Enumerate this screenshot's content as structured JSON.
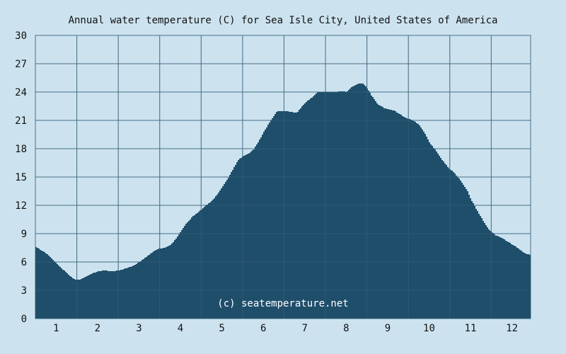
{
  "chart_data": {
    "type": "area",
    "title": "Annual water temperature (C) for Sea Isle City, United States of America",
    "xlabel": "",
    "ylabel": "",
    "x_ticks": [
      "1",
      "2",
      "3",
      "4",
      "5",
      "6",
      "7",
      "8",
      "9",
      "10",
      "11",
      "12"
    ],
    "y_ticks": [
      "0",
      "3",
      "6",
      "9",
      "12",
      "15",
      "18",
      "21",
      "24",
      "27",
      "30"
    ],
    "xlim": [
      0.5,
      12.45
    ],
    "ylim": [
      0,
      30
    ],
    "grid": true,
    "series": [
      {
        "x": [
          0.5,
          0.6,
          0.75,
          0.9,
          1.0,
          1.15,
          1.3,
          1.45,
          1.55,
          1.7,
          1.85,
          2.0,
          2.15,
          2.35,
          2.5,
          2.65,
          2.8,
          3.0,
          3.15,
          3.3,
          3.45,
          3.6,
          3.75,
          3.9,
          4.0,
          4.15,
          4.3,
          4.45,
          4.6,
          4.75,
          4.9,
          5.0,
          5.15,
          5.3,
          5.4,
          5.5,
          5.6,
          5.75,
          5.9,
          6.0,
          6.15,
          6.3,
          6.4,
          6.5,
          6.65,
          6.8,
          6.9,
          7.0,
          7.15,
          7.3,
          7.5,
          7.7,
          7.9,
          8.0,
          8.1,
          8.2,
          8.3,
          8.4,
          8.5,
          8.6,
          8.75,
          8.9,
          9.0,
          9.15,
          9.3,
          9.45,
          9.6,
          9.75,
          9.9,
          10.0,
          10.15,
          10.3,
          10.45,
          10.6,
          10.75,
          10.9,
          11.0,
          11.15,
          11.3,
          11.45,
          11.6,
          11.75,
          11.9,
          12.05,
          12.2,
          12.3,
          12.45
        ],
        "values": [
          7.6,
          7.3,
          6.9,
          6.3,
          5.8,
          5.2,
          4.6,
          4.1,
          4.1,
          4.4,
          4.8,
          5.0,
          5.1,
          5.0,
          5.1,
          5.3,
          5.5,
          6.0,
          6.5,
          7.0,
          7.4,
          7.5,
          7.8,
          8.6,
          9.3,
          10.2,
          10.9,
          11.4,
          12.0,
          12.5,
          13.3,
          14.0,
          15.0,
          16.2,
          16.9,
          17.2,
          17.4,
          17.9,
          19.0,
          19.8,
          20.9,
          21.9,
          22.0,
          22.0,
          21.9,
          21.8,
          22.4,
          22.9,
          23.4,
          24.0,
          24.0,
          24.0,
          24.1,
          24.0,
          24.5,
          24.7,
          24.9,
          24.9,
          24.3,
          23.6,
          22.7,
          22.3,
          22.2,
          22.0,
          21.6,
          21.2,
          21.0,
          20.5,
          19.5,
          18.6,
          17.8,
          16.8,
          16.0,
          15.4,
          14.6,
          13.6,
          12.6,
          11.4,
          10.3,
          9.3,
          8.8,
          8.5,
          8.1,
          7.7,
          7.2,
          6.9,
          6.7
        ]
      }
    ],
    "colors": {
      "background": "#cce3ef",
      "plot_background": "#cce3ef",
      "fill": "#1f4e6b",
      "grid": "#4a6f87",
      "text": "#111111",
      "credit_text": "#ffffff"
    },
    "annotation": "(c) seatemperature.net"
  }
}
